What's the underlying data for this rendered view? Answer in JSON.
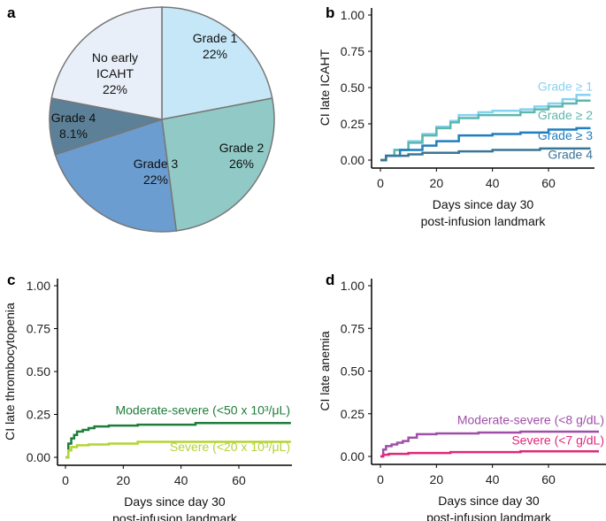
{
  "chart_data": [
    {
      "panel": "a",
      "type": "pie",
      "slices": [
        {
          "label": "Grade 1",
          "value_label": "22%",
          "value": 22,
          "color": "#c6e7f7"
        },
        {
          "label": "Grade 2",
          "value_label": "26%",
          "value": 26,
          "color": "#90c9c5"
        },
        {
          "label": "Grade 3",
          "value_label": "22%",
          "value": 22,
          "color": "#6b9dd0"
        },
        {
          "label": "Grade 4",
          "value_label": "8.1%",
          "value": 8.1,
          "color": "#5c8097"
        },
        {
          "label": "No early ICAHT",
          "value_label": "22%",
          "value": 22,
          "color": "#e9eff8"
        }
      ]
    },
    {
      "panel": "b",
      "type": "line",
      "xlabel": [
        "Days since day 30",
        "post-infusion landmark"
      ],
      "ylabel": "CI late ICAHT",
      "xlim": [
        0,
        76
      ],
      "ylim": [
        0,
        1
      ],
      "xticks": [
        "0",
        "20",
        "40",
        "60"
      ],
      "xtick_values": [
        0,
        20,
        40,
        60
      ],
      "yticks": [
        "0.00",
        "0.25",
        "0.50",
        "0.75",
        "1.00"
      ],
      "ytick_values": [
        0,
        0.25,
        0.5,
        0.75,
        1
      ],
      "series": [
        {
          "name": "Grade ≥ 1",
          "color": "#86d2f0",
          "label_y": 0.48,
          "x": [
            0,
            2,
            5,
            10,
            15,
            20,
            25,
            28,
            35,
            40,
            50,
            55,
            60,
            65,
            70,
            75
          ],
          "y": [
            0,
            0.03,
            0.07,
            0.13,
            0.18,
            0.23,
            0.27,
            0.31,
            0.33,
            0.34,
            0.35,
            0.37,
            0.39,
            0.42,
            0.45,
            0.45
          ]
        },
        {
          "name": "Grade ≥ 2",
          "color": "#5db7ad",
          "label_y": 0.28,
          "x": [
            0,
            2,
            5,
            10,
            15,
            20,
            25,
            28,
            35,
            40,
            50,
            55,
            60,
            65,
            70,
            75
          ],
          "y": [
            0,
            0.03,
            0.07,
            0.12,
            0.17,
            0.22,
            0.26,
            0.29,
            0.31,
            0.31,
            0.33,
            0.35,
            0.37,
            0.39,
            0.41,
            0.41
          ]
        },
        {
          "name": "Grade ≥ 3",
          "color": "#1f7fc0",
          "label_y": 0.14,
          "x": [
            0,
            2,
            7,
            15,
            20,
            28,
            40,
            50,
            60,
            70,
            75
          ],
          "y": [
            0,
            0.03,
            0.07,
            0.1,
            0.13,
            0.17,
            0.18,
            0.19,
            0.21,
            0.22,
            0.22
          ]
        },
        {
          "name": "Grade 4",
          "color": "#3a7596",
          "label_y": 0.01,
          "x": [
            0,
            2,
            10,
            15,
            28,
            40,
            57,
            75
          ],
          "y": [
            0,
            0.03,
            0.04,
            0.05,
            0.06,
            0.07,
            0.08,
            0.08
          ]
        }
      ]
    },
    {
      "panel": "c",
      "type": "line",
      "xlabel": [
        "Days since day 30",
        "post-infusion landmark"
      ],
      "ylabel": "CI late thrombocytopenia",
      "xlim": [
        0,
        78
      ],
      "ylim": [
        0,
        1
      ],
      "xticks": [
        "0",
        "20",
        "40",
        "60"
      ],
      "xtick_values": [
        0,
        20,
        40,
        60
      ],
      "yticks": [
        "0.00",
        "0.25",
        "0.50",
        "0.75",
        "1.00"
      ],
      "ytick_values": [
        0,
        0.25,
        0.5,
        0.75,
        1
      ],
      "series": [
        {
          "name": "Moderate-severe (<50 x 10³/μL)",
          "color": "#1e7d3a",
          "label_y": 0.25,
          "x": [
            0,
            1,
            2,
            3,
            4,
            6,
            8,
            10,
            15,
            25,
            45,
            78
          ],
          "y": [
            0,
            0.08,
            0.11,
            0.13,
            0.15,
            0.16,
            0.17,
            0.18,
            0.185,
            0.19,
            0.2,
            0.2
          ]
        },
        {
          "name": "Severe (<20 x 10³/μL)",
          "color": "#b4d334",
          "label_y": 0.035,
          "x": [
            0,
            1,
            2,
            4,
            8,
            15,
            25,
            78
          ],
          "y": [
            0,
            0.04,
            0.06,
            0.07,
            0.075,
            0.08,
            0.09,
            0.09
          ]
        }
      ]
    },
    {
      "panel": "d",
      "type": "line",
      "xlabel": [
        "Days since day 30",
        "post-infusion landmark"
      ],
      "ylabel": "CI late anemia",
      "xlim": [
        0,
        78
      ],
      "ylim": [
        0,
        1
      ],
      "xticks": [
        "0",
        "20",
        "40",
        "60"
      ],
      "xtick_values": [
        0,
        20,
        40,
        60
      ],
      "yticks": [
        "0.00",
        "0.25",
        "0.50",
        "0.75",
        "1.00"
      ],
      "ytick_values": [
        0,
        0.25,
        0.5,
        0.75,
        1
      ],
      "series": [
        {
          "name": "Moderate-severe (<8 g/dL)",
          "color": "#a04fa8",
          "label_y": 0.19,
          "x": [
            0,
            1,
            2,
            4,
            6,
            8,
            10,
            13,
            20,
            35,
            50,
            78
          ],
          "y": [
            0,
            0.04,
            0.06,
            0.07,
            0.08,
            0.09,
            0.11,
            0.13,
            0.135,
            0.14,
            0.145,
            0.145
          ]
        },
        {
          "name": "Severe (<7 g/dL)",
          "color": "#e0287a",
          "label_y": 0.07,
          "x": [
            0,
            1,
            3,
            10,
            25,
            50,
            78
          ],
          "y": [
            0,
            0.01,
            0.015,
            0.02,
            0.025,
            0.03,
            0.03
          ]
        }
      ]
    }
  ]
}
